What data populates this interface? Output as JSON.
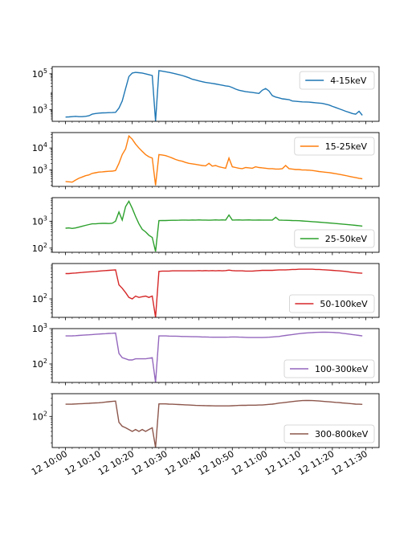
{
  "chart_data": [
    {
      "type": "line",
      "scale": "log",
      "name": "4-15keV",
      "color": "#1f77b4",
      "yticks": [
        {
          "v": 1000,
          "label": "10",
          "sup": "3"
        },
        {
          "v": 100000,
          "label": "10",
          "sup": "5"
        }
      ],
      "ylim": [
        220,
        250000
      ],
      "legend": "upper right",
      "x": [
        0,
        1,
        2,
        3,
        4,
        5,
        6,
        7,
        8,
        9,
        10,
        11,
        12,
        13,
        14,
        15,
        16,
        17,
        18,
        19,
        20,
        21,
        22,
        23,
        24,
        25,
        26,
        27,
        28,
        29,
        30,
        31,
        32,
        33,
        34,
        35,
        36,
        37,
        38,
        39,
        40,
        41,
        42,
        43,
        44,
        45,
        46,
        47,
        48,
        49,
        50,
        51,
        52,
        53,
        54,
        55,
        56,
        57,
        58,
        59,
        60,
        61,
        62,
        63,
        64,
        65,
        66,
        67,
        68,
        69,
        70,
        71,
        72,
        73,
        74,
        75,
        76,
        77,
        78,
        79,
        80,
        81,
        82,
        83,
        84,
        85,
        86,
        87,
        88,
        89
      ],
      "y": [
        380,
        390,
        400,
        420,
        400,
        400,
        420,
        450,
        550,
        600,
        630,
        650,
        660,
        670,
        680,
        700,
        1200,
        3000,
        15000,
        70000,
        110000,
        120000,
        115000,
        110000,
        100000,
        90000,
        80000,
        200,
        150000,
        140000,
        130000,
        120000,
        110000,
        100000,
        90000,
        80000,
        70000,
        60000,
        50000,
        45000,
        40000,
        36000,
        33000,
        31000,
        29000,
        27000,
        25000,
        23000,
        21000,
        20000,
        17000,
        14000,
        12000,
        11000,
        10000,
        9500,
        9000,
        8500,
        8000,
        12000,
        15000,
        11000,
        6000,
        5000,
        4500,
        4000,
        3800,
        3600,
        3000,
        2900,
        2800,
        2700,
        2650,
        2600,
        2500,
        2400,
        2300,
        2200,
        2000,
        1800,
        1500,
        1300,
        1100,
        950,
        800,
        700,
        600,
        550,
        800,
        480
      ]
    },
    {
      "type": "line",
      "scale": "log",
      "name": "15-25keV",
      "color": "#ff7f0e",
      "yticks": [
        {
          "v": 1000,
          "label": "10",
          "sup": "3"
        },
        {
          "v": 10000,
          "label": "10",
          "sup": "4"
        }
      ],
      "ylim": [
        180,
        50000
      ],
      "legend": "upper right",
      "x": [
        0,
        1,
        2,
        3,
        4,
        5,
        6,
        7,
        8,
        9,
        10,
        11,
        12,
        13,
        14,
        15,
        16,
        17,
        18,
        19,
        20,
        21,
        22,
        23,
        24,
        25,
        26,
        27,
        28,
        29,
        30,
        31,
        32,
        33,
        34,
        35,
        36,
        37,
        38,
        39,
        40,
        41,
        42,
        43,
        44,
        45,
        46,
        47,
        48,
        49,
        50,
        51,
        52,
        53,
        54,
        55,
        56,
        57,
        58,
        59,
        60,
        61,
        62,
        63,
        64,
        65,
        66,
        67,
        68,
        69,
        70,
        71,
        72,
        73,
        74,
        75,
        76,
        77,
        78,
        79,
        80,
        81,
        82,
        83,
        84,
        85,
        86,
        87,
        88,
        89
      ],
      "y": [
        300,
        290,
        280,
        350,
        420,
        480,
        550,
        600,
        700,
        750,
        800,
        820,
        850,
        870,
        890,
        950,
        2000,
        5000,
        9000,
        35000,
        25000,
        15000,
        10000,
        7000,
        5000,
        4000,
        3500,
        200,
        5000,
        4800,
        4500,
        4000,
        3500,
        3000,
        2700,
        2500,
        2200,
        2000,
        1900,
        1800,
        1700,
        1600,
        1550,
        2000,
        1500,
        1600,
        1400,
        1300,
        1200,
        3500,
        1400,
        1300,
        1200,
        1150,
        1300,
        1250,
        1200,
        1400,
        1300,
        1250,
        1200,
        1150,
        1150,
        1100,
        1100,
        1150,
        1600,
        1150,
        1100,
        1050,
        1050,
        1000,
        1000,
        980,
        950,
        900,
        850,
        820,
        790,
        760,
        720,
        680,
        640,
        600,
        560,
        520,
        480,
        450,
        420,
        400
      ]
    },
    {
      "type": "line",
      "scale": "log",
      "name": "25-50keV",
      "color": "#2ca02c",
      "yticks": [
        {
          "v": 100,
          "label": "10",
          "sup": "2"
        },
        {
          "v": 1000,
          "label": "10",
          "sup": "3"
        }
      ],
      "ylim": [
        70,
        7500
      ],
      "legend": "lower right",
      "x": [
        0,
        1,
        2,
        3,
        4,
        5,
        6,
        7,
        8,
        9,
        10,
        11,
        12,
        13,
        14,
        15,
        16,
        17,
        18,
        19,
        20,
        21,
        22,
        23,
        24,
        25,
        26,
        27,
        28,
        29,
        30,
        31,
        32,
        33,
        34,
        35,
        36,
        37,
        38,
        39,
        40,
        41,
        42,
        43,
        44,
        45,
        46,
        47,
        48,
        49,
        50,
        51,
        52,
        53,
        54,
        55,
        56,
        57,
        58,
        59,
        60,
        61,
        62,
        63,
        64,
        65,
        66,
        67,
        68,
        69,
        70,
        71,
        72,
        73,
        74,
        75,
        76,
        77,
        78,
        79,
        80,
        81,
        82,
        83,
        84,
        85,
        86,
        87,
        88,
        89
      ],
      "y": [
        550,
        560,
        540,
        560,
        600,
        650,
        700,
        750,
        800,
        800,
        820,
        830,
        830,
        820,
        840,
        1000,
        2200,
        1100,
        3500,
        5500,
        3000,
        1500,
        800,
        500,
        400,
        300,
        250,
        75,
        1050,
        1060,
        1060,
        1070,
        1080,
        1080,
        1090,
        1100,
        1100,
        1090,
        1110,
        1100,
        1120,
        1100,
        1100,
        1090,
        1100,
        1120,
        1100,
        1120,
        1100,
        1700,
        1100,
        1110,
        1120,
        1100,
        1110,
        1120,
        1100,
        1100,
        1110,
        1100,
        1100,
        1100,
        1100,
        1400,
        1100,
        1090,
        1080,
        1070,
        1060,
        1050,
        1040,
        1020,
        1000,
        980,
        960,
        940,
        920,
        900,
        880,
        860,
        840,
        820,
        800,
        780,
        760,
        740,
        720,
        700,
        680,
        660
      ]
    },
    {
      "type": "line",
      "scale": "log",
      "name": "50-100keV",
      "color": "#d62728",
      "yticks": [
        {
          "v": 100,
          "label": "10",
          "sup": "2"
        }
      ],
      "ylim": [
        30,
        1000
      ],
      "legend": "lower right",
      "x": [
        0,
        1,
        2,
        3,
        4,
        5,
        6,
        7,
        8,
        9,
        10,
        11,
        12,
        13,
        14,
        15,
        16,
        17,
        18,
        19,
        20,
        21,
        22,
        23,
        24,
        25,
        26,
        27,
        28,
        29,
        30,
        31,
        32,
        33,
        34,
        35,
        36,
        37,
        38,
        39,
        40,
        41,
        42,
        43,
        44,
        45,
        46,
        47,
        48,
        49,
        50,
        51,
        52,
        53,
        54,
        55,
        56,
        57,
        58,
        59,
        60,
        61,
        62,
        63,
        64,
        65,
        66,
        67,
        68,
        69,
        70,
        71,
        72,
        73,
        74,
        75,
        76,
        77,
        78,
        79,
        80,
        81,
        82,
        83,
        84,
        85,
        86,
        87,
        88,
        89
      ],
      "y": [
        520,
        520,
        530,
        540,
        550,
        560,
        570,
        580,
        590,
        600,
        610,
        620,
        630,
        640,
        650,
        660,
        250,
        200,
        150,
        110,
        100,
        120,
        110,
        115,
        120,
        110,
        120,
        30,
        600,
        610,
        610,
        610,
        620,
        620,
        620,
        620,
        620,
        620,
        620,
        620,
        630,
        620,
        630,
        620,
        630,
        620,
        630,
        620,
        630,
        650,
        630,
        620,
        620,
        620,
        610,
        610,
        610,
        620,
        630,
        640,
        640,
        640,
        640,
        650,
        660,
        660,
        660,
        670,
        680,
        680,
        690,
        690,
        690,
        690,
        690,
        680,
        680,
        670,
        660,
        650,
        640,
        630,
        620,
        610,
        600,
        580,
        560,
        550,
        540,
        530
      ]
    },
    {
      "type": "line",
      "scale": "log",
      "name": "100-300keV",
      "color": "#9467bd",
      "yticks": [
        {
          "v": 100,
          "label": "10",
          "sup": "2"
        },
        {
          "v": 1000,
          "label": "10",
          "sup": "3"
        }
      ],
      "ylim": [
        30,
        1000
      ],
      "legend": "lower right",
      "x": [
        0,
        1,
        2,
        3,
        4,
        5,
        6,
        7,
        8,
        9,
        10,
        11,
        12,
        13,
        14,
        15,
        16,
        17,
        18,
        19,
        20,
        21,
        22,
        23,
        24,
        25,
        26,
        27,
        28,
        29,
        30,
        31,
        32,
        33,
        34,
        35,
        36,
        37,
        38,
        39,
        40,
        41,
        42,
        43,
        44,
        45,
        46,
        47,
        48,
        49,
        50,
        51,
        52,
        53,
        54,
        55,
        56,
        57,
        58,
        59,
        60,
        61,
        62,
        63,
        64,
        65,
        66,
        67,
        68,
        69,
        70,
        71,
        72,
        73,
        74,
        75,
        76,
        77,
        78,
        79,
        80,
        81,
        82,
        83,
        84,
        85,
        86,
        87,
        88,
        89
      ],
      "y": [
        620,
        620,
        625,
        630,
        640,
        650,
        660,
        670,
        680,
        690,
        700,
        710,
        720,
        730,
        740,
        750,
        200,
        150,
        140,
        130,
        130,
        140,
        140,
        140,
        140,
        145,
        150,
        30,
        620,
        620,
        620,
        615,
        610,
        610,
        605,
        600,
        600,
        595,
        590,
        590,
        585,
        580,
        580,
        575,
        570,
        570,
        570,
        570,
        570,
        575,
        580,
        580,
        575,
        570,
        565,
        560,
        560,
        560,
        560,
        560,
        565,
        570,
        580,
        590,
        600,
        620,
        640,
        660,
        680,
        700,
        720,
        740,
        750,
        760,
        770,
        780,
        785,
        790,
        790,
        785,
        780,
        770,
        760,
        740,
        720,
        700,
        680,
        660,
        640,
        620
      ]
    },
    {
      "type": "line",
      "scale": "log",
      "name": "300-800keV",
      "color": "#8c564b",
      "yticks": [
        {
          "v": 100,
          "label": "10",
          "sup": "2"
        }
      ],
      "ylim": [
        15,
        400
      ],
      "legend": "lower right",
      "x": [
        0,
        1,
        2,
        3,
        4,
        5,
        6,
        7,
        8,
        9,
        10,
        11,
        12,
        13,
        14,
        15,
        16,
        17,
        18,
        19,
        20,
        21,
        22,
        23,
        24,
        25,
        26,
        27,
        28,
        29,
        30,
        31,
        32,
        33,
        34,
        35,
        36,
        37,
        38,
        39,
        40,
        41,
        42,
        43,
        44,
        45,
        46,
        47,
        48,
        49,
        50,
        51,
        52,
        53,
        54,
        55,
        56,
        57,
        58,
        59,
        60,
        61,
        62,
        63,
        64,
        65,
        66,
        67,
        68,
        69,
        70,
        71,
        72,
        73,
        74,
        75,
        76,
        77,
        78,
        79,
        80,
        81,
        82,
        83,
        84,
        85,
        86,
        87,
        88,
        89
      ],
      "y": [
        210,
        210,
        212,
        214,
        216,
        218,
        220,
        222,
        225,
        228,
        230,
        235,
        240,
        245,
        250,
        255,
        70,
        55,
        50,
        45,
        40,
        45,
        40,
        45,
        40,
        45,
        50,
        15,
        215,
        215,
        215,
        212,
        210,
        208,
        206,
        204,
        202,
        200,
        198,
        196,
        195,
        194,
        193,
        192,
        191,
        190,
        190,
        190,
        190,
        190,
        192,
        194,
        196,
        197,
        197,
        198,
        198,
        198,
        200,
        200,
        204,
        208,
        212,
        218,
        225,
        230,
        236,
        242,
        248,
        254,
        258,
        262,
        264,
        264,
        262,
        260,
        256,
        252,
        248,
        244,
        240,
        236,
        232,
        228,
        224,
        220,
        216,
        212,
        210,
        208
      ]
    }
  ],
  "xaxis": {
    "ticks": [
      {
        "v": 0,
        "label": "12 10:00"
      },
      {
        "v": 10,
        "label": "12 10:10"
      },
      {
        "v": 20,
        "label": "12 10:20"
      },
      {
        "v": 30,
        "label": "12 10:30"
      },
      {
        "v": 40,
        "label": "12 10:40"
      },
      {
        "v": 50,
        "label": "12 10:50"
      },
      {
        "v": 60,
        "label": "12 11:00"
      },
      {
        "v": 70,
        "label": "12 11:10"
      },
      {
        "v": 80,
        "label": "12 11:20"
      },
      {
        "v": 90,
        "label": "12 11:30"
      }
    ],
    "xlim": [
      -4,
      94
    ]
  }
}
